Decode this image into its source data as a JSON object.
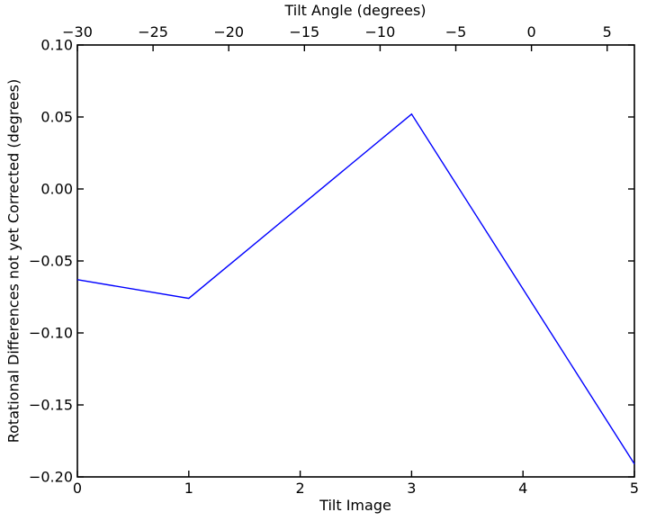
{
  "figure": {
    "background": "#ffffff",
    "axis_color": "#000000",
    "line_color": "#0000ff"
  },
  "chart_data": {
    "type": "line",
    "title": "Tilt Angle (degrees)",
    "xlabel": "Tilt Image",
    "ylabel": "Rotational Differences not yet Corrected (degrees)",
    "x": [
      0,
      1,
      3,
      5
    ],
    "y": [
      -0.063,
      -0.076,
      0.052,
      -0.191
    ],
    "xlim": [
      0,
      5
    ],
    "ylim": [
      -0.2,
      0.1
    ],
    "x_ticks": [
      0,
      1,
      2,
      3,
      4,
      5
    ],
    "x_tick_labels": [
      "0",
      "1",
      "2",
      "3",
      "4",
      "5"
    ],
    "y_ticks": [
      0.1,
      0.05,
      0.0,
      -0.05,
      -0.1,
      -0.15,
      -0.2
    ],
    "y_tick_labels": [
      "0.10",
      "0.05",
      "0.00",
      "−0.05",
      "−0.10",
      "−0.15",
      "−0.20"
    ],
    "top_axis": {
      "label": "Tilt Angle (degrees)",
      "lim": [
        -30,
        6.8
      ],
      "ticks": [
        -30,
        -25,
        -20,
        -15,
        -10,
        -5,
        0,
        5
      ],
      "tick_labels": [
        "−30",
        "−25",
        "−20",
        "−15",
        "−10",
        "−5",
        "0",
        "5"
      ]
    },
    "grid": false,
    "legend": null
  }
}
